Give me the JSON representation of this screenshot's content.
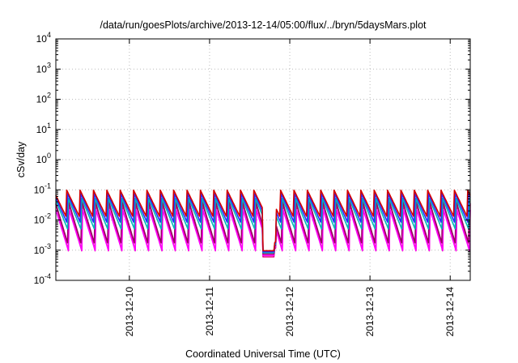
{
  "chart_data": {
    "type": "line",
    "title": "/data/run/goesPlots/archive/2013-12-14/05:00/flux/../bryn/5daysMars.plot",
    "xlabel": "Coordinated Universal Time (UTC)",
    "ylabel": "cSv/day",
    "yscale": "log",
    "ylim": [
      0.0001,
      10000
    ],
    "y_tick_exponents": [
      "4",
      "3",
      "2",
      "1",
      "0",
      "-1",
      "-2",
      "-3",
      "-4"
    ],
    "y_tick_base": "10",
    "xlim": [
      "2013-12-09T02:00",
      "2013-12-14T06:00"
    ],
    "x_tick_labels": [
      "2013-12-10",
      "2013-12-11",
      "2013-12-12",
      "2013-12-13",
      "2013-12-14"
    ],
    "x_tick_dates": [
      "2013-12-10",
      "2013-12-11",
      "2013-12-12",
      "2013-12-13",
      "2013-12-14"
    ],
    "grid": true,
    "series": [
      {
        "color": "#e0007f",
        "peak": 0.035,
        "trough": 0.00075
      },
      {
        "color": "#ff00ff",
        "peak": 0.025,
        "trough": 0.0009
      },
      {
        "color": "#990066",
        "peak": 0.045,
        "trough": 0.0015
      },
      {
        "color": "#00b8b8",
        "peak": 0.06,
        "trough": 0.005
      },
      {
        "color": "#2a2aff",
        "peak": 0.08,
        "trough": 0.008
      },
      {
        "color": "#d40000",
        "peak": 0.1,
        "trough": 0.012
      }
    ],
    "sawtooth_period_hours": 4,
    "gap": {
      "start": "2013-12-11T16:00",
      "end": "2013-12-11T20:00",
      "trough": 0.0006
    }
  }
}
